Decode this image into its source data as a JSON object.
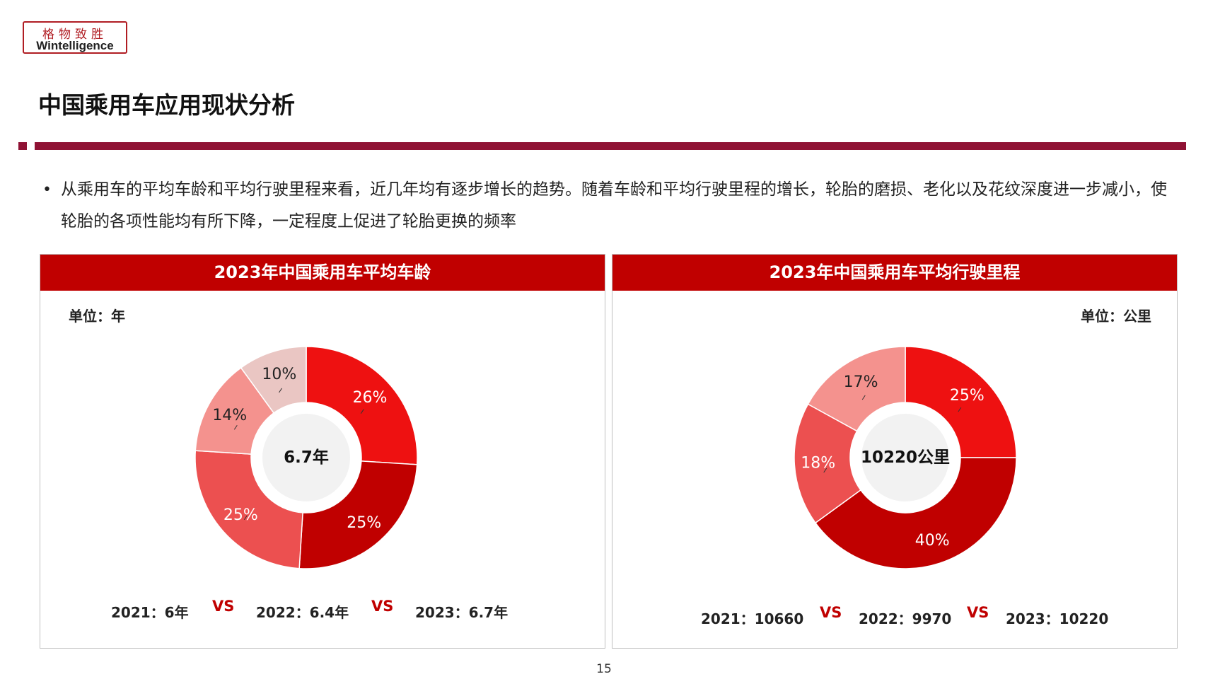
{
  "logo": {
    "line1": "格物致胜",
    "line2": "Wintelligence"
  },
  "page_title": "中国乘用车应用现状分析",
  "bullet_text": "从乘用车的平均车龄和平均行驶里程来看，近几年均有逐步增长的趋势。随着车龄和平均行驶里程的增长，轮胎的磨损、老化以及花纹深度进一步减小，使轮胎的各项性能均有所下降，一定程度上促进了轮胎更换的频率",
  "colors": {
    "accent": "#c00000",
    "rule": "#8f1234",
    "center": "#f2f2f2"
  },
  "chart_data": [
    {
      "type": "pie",
      "donut": true,
      "title": "2023年中国乘用车平均车龄",
      "unit_label": "单位：年",
      "center_label": "6.7年",
      "slices": [
        {
          "label": "26%",
          "value": 26,
          "color": "#ee1111"
        },
        {
          "label": "25%",
          "value": 25,
          "color": "#c00000"
        },
        {
          "label": "25%",
          "value": 25,
          "color": "#ec5050"
        },
        {
          "label": "14%",
          "value": 14,
          "color": "#f4928e"
        },
        {
          "label": "10%",
          "value": 10,
          "color": "#eac6c3"
        }
      ],
      "comparison": [
        {
          "text": "2021：6年"
        },
        {
          "text": "2022：6.4年"
        },
        {
          "text": "2023：6.7年"
        }
      ],
      "vs_label": "VS"
    },
    {
      "type": "pie",
      "donut": true,
      "title": "2023年中国乘用车平均行驶里程",
      "unit_label": "单位：公里",
      "center_label": "10220公里",
      "slices": [
        {
          "label": "25%",
          "value": 25,
          "color": "#ee1111"
        },
        {
          "label": "40%",
          "value": 40,
          "color": "#c00000"
        },
        {
          "label": "18%",
          "value": 18,
          "color": "#ec5050"
        },
        {
          "label": "17%",
          "value": 17,
          "color": "#f4928e"
        }
      ],
      "comparison": [
        {
          "text": "2021：10660"
        },
        {
          "text": "2022：9970"
        },
        {
          "text": "2023：10220"
        }
      ],
      "vs_label": "VS"
    }
  ],
  "page_number": "15"
}
